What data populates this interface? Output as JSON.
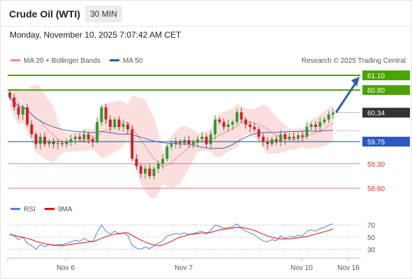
{
  "header": {
    "title": "Crude Oil (WTI)",
    "timeframe": "30 MIN",
    "timestamp": "Monday, November 10, 2025 7:07:42 AM CET"
  },
  "legend": {
    "ma20": "MA 20 + Bollinger Bands",
    "ma50": "MA 50",
    "rsi": "RSI",
    "ma9": "9MA",
    "credit": "Research © 2025 Trading Central"
  },
  "colors": {
    "up": "#2e9a2e",
    "down": "#cc2222",
    "target": "#4aa300",
    "pivot": "#2b56c4",
    "support": "#e03030",
    "current": "#333333",
    "arrow": "#2b5ea8",
    "band": "#f9caca",
    "ma20": "#f08a8a",
    "ma50": "#2d5aa6",
    "rsi": "#5a7fd9",
    "ma9": "#dd1111"
  },
  "levels": [
    {
      "price": 61.1,
      "label": "61.10",
      "kind": "target"
    },
    {
      "price": 60.8,
      "label": "60.80",
      "kind": "target"
    },
    {
      "price": 60.34,
      "label": "60.34",
      "kind": "current"
    },
    {
      "price": 59.75,
      "label": "59.75",
      "kind": "pivot"
    },
    {
      "price": 59.3,
      "label": "59.30",
      "kind": "support"
    },
    {
      "price": 58.8,
      "label": "58.80",
      "kind": "support"
    }
  ],
  "rsi_levels": [
    "70",
    "50",
    "30"
  ],
  "x_axis": [
    "Nov 6",
    "Nov 7",
    "Nov 10",
    "Nov 16"
  ],
  "chart_data": {
    "type": "candlestick",
    "instrument": "Crude Oil (WTI)",
    "interval": "30 MIN",
    "ylim": [
      58.7,
      61.2
    ],
    "close": [
      60.65,
      60.45,
      60.3,
      60.45,
      60.1,
      59.9,
      59.7,
      59.85,
      59.7,
      59.75,
      59.7,
      59.72,
      59.7,
      59.75,
      59.8,
      59.85,
      59.8,
      59.9,
      59.8,
      59.75,
      60.15,
      60.45,
      60.2,
      60.05,
      60.2,
      60.05,
      60.1,
      60.0,
      59.4,
      59.25,
      59.1,
      59.2,
      59.05,
      59.2,
      59.3,
      59.4,
      59.65,
      59.7,
      59.75,
      59.72,
      59.78,
      59.7,
      59.75,
      59.8,
      59.85,
      59.7,
      59.9,
      60.2,
      60.15,
      60.05,
      60.1,
      60.15,
      60.35,
      60.2,
      60.1,
      60.05,
      60.0,
      59.85,
      59.75,
      59.7,
      59.8,
      59.75,
      59.9,
      59.8,
      59.85,
      59.82,
      59.88,
      59.85,
      60.05,
      60.1,
      60.05,
      60.15,
      60.2,
      60.3,
      60.34
    ],
    "rsi": [
      56,
      52,
      46,
      50,
      40,
      36,
      30,
      38,
      34,
      38,
      36,
      38,
      37,
      40,
      42,
      45,
      43,
      48,
      44,
      42,
      58,
      70,
      60,
      55,
      60,
      55,
      57,
      53,
      36,
      32,
      30,
      34,
      31,
      36,
      40,
      44,
      52,
      54,
      56,
      55,
      57,
      54,
      56,
      58,
      60,
      55,
      62,
      70,
      68,
      64,
      66,
      67,
      72,
      65,
      60,
      57,
      54,
      48,
      44,
      42,
      46,
      44,
      52,
      48,
      51,
      50,
      53,
      52,
      60,
      62,
      60,
      64,
      66,
      70,
      72
    ],
    "rsi_ma9": [
      54,
      53,
      51,
      50,
      48,
      46,
      43,
      41,
      39,
      38,
      37,
      36,
      36,
      37,
      38,
      39,
      40,
      41,
      42,
      43,
      45,
      48,
      51,
      53,
      55,
      56,
      57,
      57,
      53,
      49,
      45,
      42,
      39,
      37,
      36,
      37,
      40,
      43,
      47,
      50,
      52,
      54,
      55,
      56,
      57,
      57,
      58,
      60,
      62,
      63,
      64,
      65,
      66,
      66,
      65,
      63,
      61,
      58,
      55,
      52,
      50,
      48,
      47,
      47,
      47,
      48,
      49,
      50,
      51,
      53,
      55,
      57,
      59,
      61,
      64
    ],
    "rsi_ylim": [
      20,
      80
    ]
  }
}
